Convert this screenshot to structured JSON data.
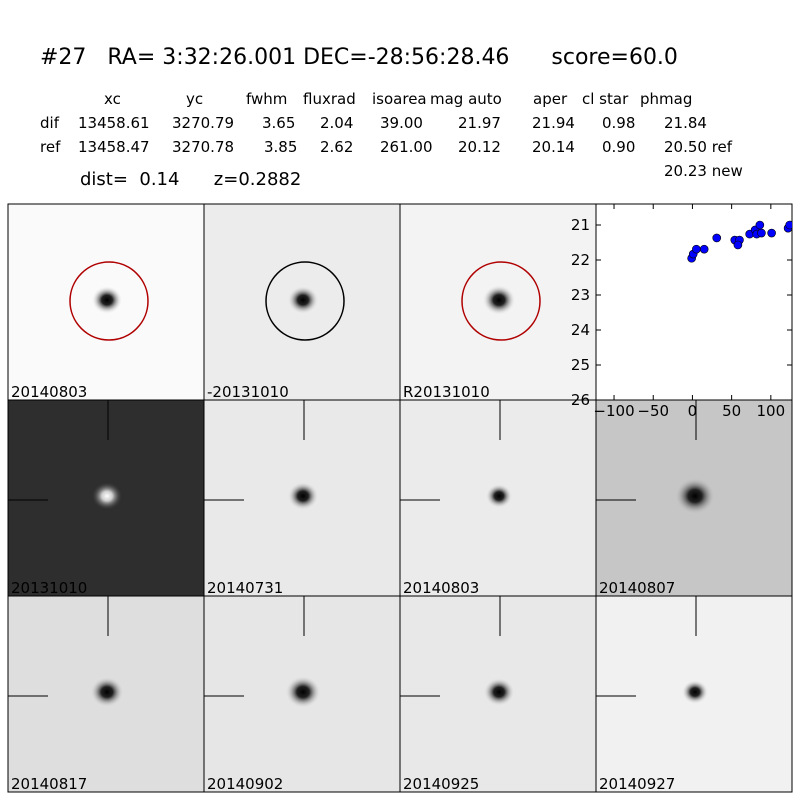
{
  "header": {
    "title": "#27   RA= 3:32:26.001 DEC=-28:56:28.46      score=60.0",
    "dist": "dist=  0.14      z=0.2882"
  },
  "table": {
    "columns": [
      "xc",
      "yc",
      "fwhm",
      "fluxrad",
      "isoarea",
      "mag auto",
      "aper",
      "cl star",
      "phmag"
    ],
    "rows": [
      [
        "dif",
        "13458.61",
        "3270.79",
        "3.65",
        "2.04",
        "39.00",
        "21.97",
        "21.94",
        "0.98",
        "21.84"
      ],
      [
        "ref",
        "13458.47",
        "3270.78",
        "3.85",
        "2.62",
        "261.00",
        "20.12",
        "20.14",
        "0.90",
        "20.50 ref"
      ]
    ],
    "extra": "20.23 new"
  },
  "panels": [
    {
      "label": "20140803",
      "circle_color": "#b00000"
    },
    {
      "label": "-20131010",
      "circle_color": "#000000"
    },
    {
      "label": "R20131010",
      "circle_color": "#b00000"
    },
    {
      "label": "20131010"
    },
    {
      "label": "20140731"
    },
    {
      "label": "20140803",
      "label_color": "#ff0000"
    },
    {
      "label": "20140807"
    },
    {
      "label": "20140817"
    },
    {
      "label": "20140902"
    },
    {
      "label": "20140925"
    },
    {
      "label": "20140927"
    }
  ],
  "chart_data": {
    "type": "scatter",
    "color": "#0000ff",
    "x": [
      -1,
      1,
      5,
      15,
      31,
      54,
      60,
      58,
      73,
      80,
      82,
      86,
      88,
      101,
      122,
      124
    ],
    "y": [
      21.95,
      21.83,
      21.69,
      21.69,
      21.37,
      21.43,
      21.43,
      21.57,
      21.26,
      21.14,
      21.26,
      21.0,
      21.23,
      21.23,
      21.09,
      21.0
    ],
    "xlim": [
      -123,
      127
    ],
    "ylim": [
      26,
      20.4
    ],
    "xticks": [
      {
        "value": -100,
        "label": "−100"
      },
      {
        "value": -50,
        "label": "−50"
      },
      0,
      50,
      100
    ],
    "yticks": [
      21,
      22,
      23,
      24,
      25,
      26
    ]
  }
}
